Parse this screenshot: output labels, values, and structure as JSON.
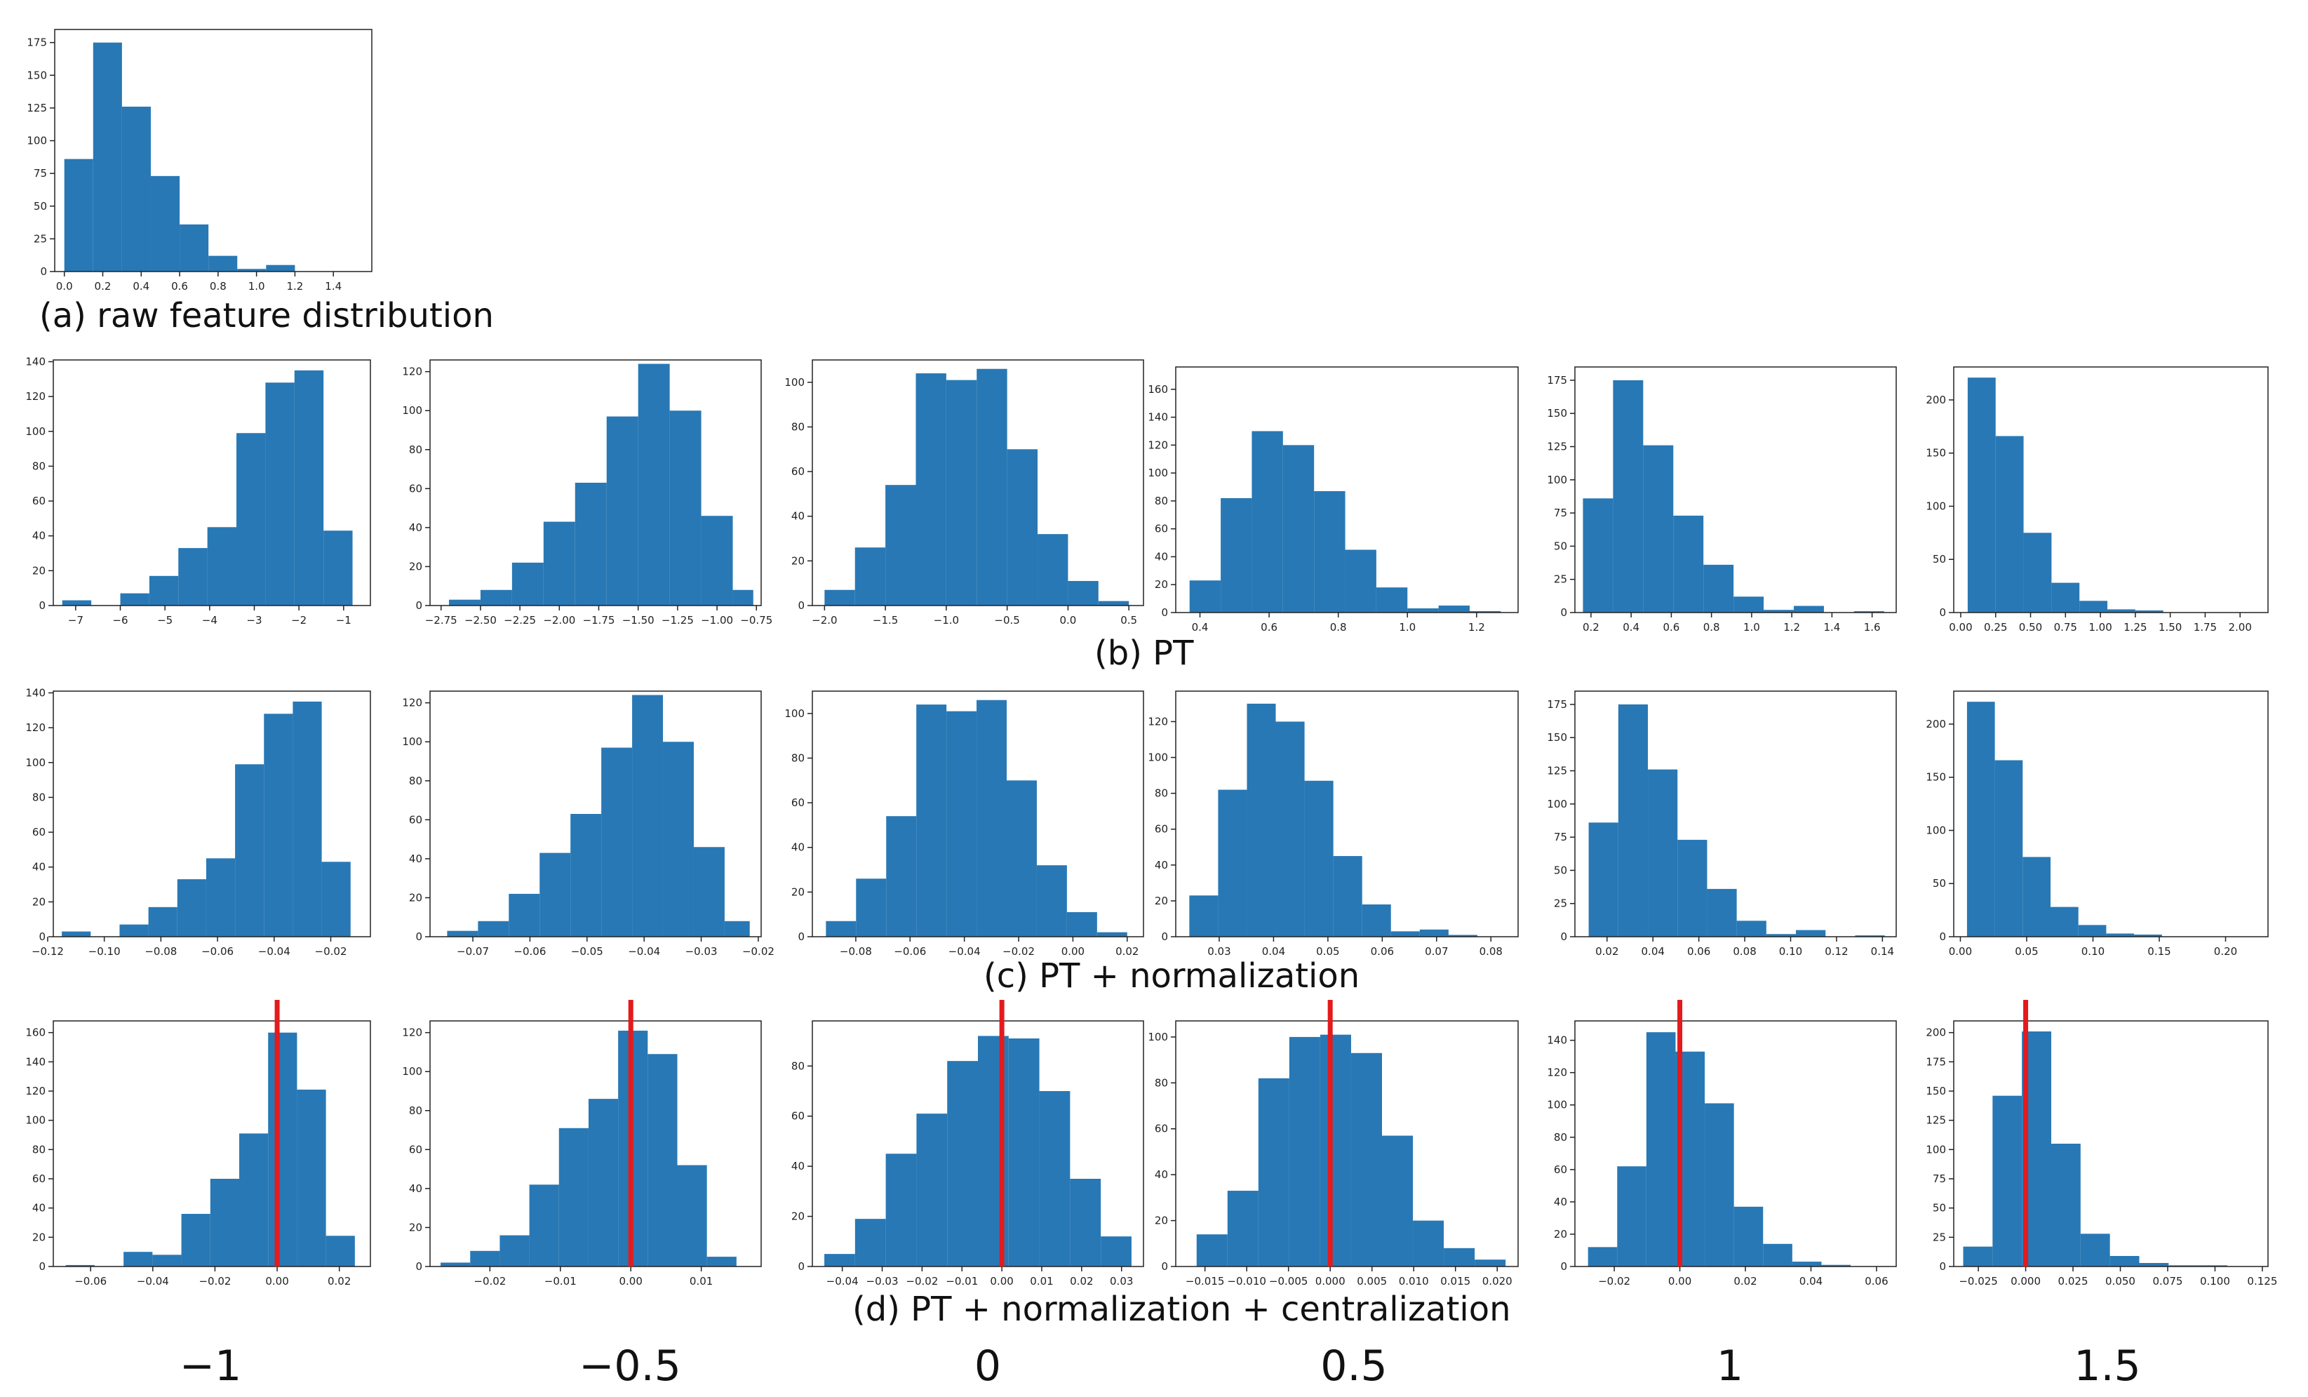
{
  "figure": {
    "captions": {
      "a": "(a) raw feature distribution",
      "b": "(b) PT",
      "c": "(c) PT + normalization",
      "d": "(d) PT + normalization + centralization"
    },
    "lambda_labels": [
      "−1",
      "−0.5",
      "0",
      "0.5",
      "1",
      "1.5"
    ],
    "colors": {
      "bar": "#2878b5",
      "marker": "#e41a1c",
      "axis": "#222222"
    }
  },
  "chart_data": [
    {
      "id": "a",
      "type": "bar",
      "title": "",
      "xlabel": "",
      "ylabel": "",
      "xlim": [
        -0.05,
        1.6
      ],
      "ylim": [
        0,
        185
      ],
      "xticks": [
        0.0,
        0.2,
        0.4,
        0.6,
        0.8,
        1.0,
        1.2,
        1.4
      ],
      "xtick_labels": [
        "0.0",
        "0.2",
        "0.4",
        "0.6",
        "0.8",
        "1.0",
        "1.2",
        "1.4"
      ],
      "yticks": [
        0,
        25,
        50,
        75,
        100,
        125,
        150,
        175
      ],
      "ytick_labels": [
        "0",
        "25",
        "50",
        "75",
        "100",
        "125",
        "150",
        "175"
      ],
      "bin_edges": [
        0.0,
        0.15,
        0.3,
        0.45,
        0.6,
        0.75,
        0.9,
        1.05,
        1.2,
        1.35,
        1.5
      ],
      "values": [
        86,
        175,
        126,
        73,
        36,
        12,
        2,
        5,
        0,
        0
      ]
    },
    {
      "id": "b1",
      "type": "bar",
      "xlim": [
        -7.5,
        -0.4
      ],
      "ylim": [
        0,
        141
      ],
      "xticks": [
        -7,
        -6,
        -5,
        -4,
        -3,
        -2,
        -1
      ],
      "xtick_labels": [
        "−7",
        "−6",
        "−5",
        "−4",
        "−3",
        "−2",
        "−1"
      ],
      "yticks": [
        0,
        20,
        40,
        60,
        80,
        100,
        120,
        140
      ],
      "ytick_labels": [
        "0",
        "20",
        "40",
        "60",
        "80",
        "100",
        "120",
        "140"
      ],
      "bin_edges": [
        -7.3,
        -6.65,
        -6.0,
        -5.35,
        -4.7,
        -4.05,
        -3.4,
        -2.75,
        -2.1,
        -1.45,
        -0.8
      ],
      "values": [
        3,
        0,
        7,
        17,
        33,
        45,
        99,
        128,
        135,
        43
      ]
    },
    {
      "id": "b2",
      "type": "bar",
      "xlim": [
        -2.82,
        -0.72
      ],
      "ylim": [
        0,
        126
      ],
      "xticks": [
        -2.75,
        -2.5,
        -2.25,
        -2.0,
        -1.75,
        -1.5,
        -1.25,
        -1.0,
        -0.75
      ],
      "xtick_labels": [
        "−2.75",
        "−2.50",
        "−2.25",
        "−2.00",
        "−1.75",
        "−1.50",
        "−1.25",
        "−1.00",
        "−0.75"
      ],
      "yticks": [
        0,
        20,
        40,
        60,
        80,
        100,
        120
      ],
      "ytick_labels": [
        "0",
        "20",
        "40",
        "60",
        "80",
        "100",
        "120"
      ],
      "bin_edges": [
        -2.7,
        -2.5,
        -2.3,
        -2.1,
        -1.9,
        -1.7,
        -1.5,
        -1.3,
        -1.1,
        -0.9,
        -0.77
      ],
      "values": [
        3,
        8,
        22,
        43,
        63,
        97,
        124,
        100,
        46,
        8
      ]
    },
    {
      "id": "b3",
      "type": "bar",
      "xlim": [
        -2.1,
        0.62
      ],
      "ylim": [
        0,
        110
      ],
      "xticks": [
        -2.0,
        -1.5,
        -1.0,
        -0.5,
        0.0,
        0.5
      ],
      "xtick_labels": [
        "−2.0",
        "−1.5",
        "−1.0",
        "−0.5",
        "0.0",
        "0.5"
      ],
      "yticks": [
        0,
        20,
        40,
        60,
        80,
        100
      ],
      "ytick_labels": [
        "0",
        "20",
        "40",
        "60",
        "80",
        "100"
      ],
      "bin_edges": [
        -2.0,
        -1.75,
        -1.5,
        -1.25,
        -1.0,
        -0.75,
        -0.5,
        -0.25,
        0.0,
        0.25,
        0.5
      ],
      "values": [
        7,
        26,
        54,
        104,
        101,
        106,
        70,
        32,
        11,
        2
      ]
    },
    {
      "id": "b4",
      "type": "bar",
      "xlim": [
        0.33,
        1.32
      ],
      "ylim": [
        0,
        176
      ],
      "xticks": [
        0.4,
        0.6,
        0.8,
        1.0,
        1.2
      ],
      "xtick_labels": [
        "0.4",
        "0.6",
        "0.8",
        "1.0",
        "1.2"
      ],
      "yticks": [
        0,
        20,
        40,
        60,
        80,
        100,
        120,
        140,
        160
      ],
      "ytick_labels": [
        "0",
        "20",
        "40",
        "60",
        "80",
        "100",
        "120",
        "140",
        "160"
      ],
      "bin_edges": [
        0.37,
        0.46,
        0.55,
        0.64,
        0.73,
        0.82,
        0.91,
        1.0,
        1.09,
        1.18,
        1.27
      ],
      "values": [
        23,
        82,
        130,
        120,
        87,
        45,
        18,
        3,
        5,
        1
      ]
    },
    {
      "id": "b5",
      "type": "bar",
      "xlim": [
        0.12,
        1.72
      ],
      "ylim": [
        0,
        185
      ],
      "xticks": [
        0.2,
        0.4,
        0.6,
        0.8,
        1.0,
        1.2,
        1.4,
        1.6
      ],
      "xtick_labels": [
        "0.2",
        "0.4",
        "0.6",
        "0.8",
        "1.0",
        "1.2",
        "1.4",
        "1.6"
      ],
      "yticks": [
        0,
        25,
        50,
        75,
        100,
        125,
        150,
        175
      ],
      "ytick_labels": [
        "0",
        "25",
        "50",
        "75",
        "100",
        "125",
        "150",
        "175"
      ],
      "bin_edges": [
        0.16,
        0.31,
        0.46,
        0.61,
        0.76,
        0.91,
        1.06,
        1.21,
        1.36,
        1.51,
        1.66
      ],
      "values": [
        86,
        175,
        126,
        73,
        36,
        12,
        2,
        5,
        0,
        1
      ]
    },
    {
      "id": "b6",
      "type": "bar",
      "xlim": [
        -0.05,
        2.2
      ],
      "ylim": [
        0,
        231
      ],
      "xticks": [
        0.0,
        0.25,
        0.5,
        0.75,
        1.0,
        1.25,
        1.5,
        1.75,
        2.0
      ],
      "xtick_labels": [
        "0.00",
        "0.25",
        "0.50",
        "0.75",
        "1.00",
        "1.25",
        "1.50",
        "1.75",
        "2.00"
      ],
      "yticks": [
        0,
        50,
        100,
        150,
        200
      ],
      "ytick_labels": [
        "0",
        "50",
        "100",
        "150",
        "200"
      ],
      "bin_edges": [
        0.05,
        0.25,
        0.45,
        0.65,
        0.85,
        1.05,
        1.25,
        1.45,
        1.65,
        1.85,
        2.05
      ],
      "values": [
        221,
        166,
        75,
        28,
        11,
        3,
        2,
        0,
        0,
        0
      ]
    },
    {
      "id": "c1",
      "type": "bar",
      "xlim": [
        -0.118,
        -0.006
      ],
      "ylim": [
        0,
        141
      ],
      "xticks": [
        -0.12,
        -0.1,
        -0.08,
        -0.06,
        -0.04,
        -0.02
      ],
      "xtick_labels": [
        "−0.12",
        "−0.10",
        "−0.08",
        "−0.06",
        "−0.04",
        "−0.02"
      ],
      "yticks": [
        0,
        20,
        40,
        60,
        80,
        100,
        120,
        140
      ],
      "ytick_labels": [
        "0",
        "20",
        "40",
        "60",
        "80",
        "100",
        "120",
        "140"
      ],
      "bin_edges": [
        -0.115,
        -0.1048,
        -0.0946,
        -0.0844,
        -0.0742,
        -0.064,
        -0.0538,
        -0.0436,
        -0.0334,
        -0.0232,
        -0.013
      ],
      "values": [
        3,
        0,
        7,
        17,
        33,
        45,
        99,
        128,
        135,
        43
      ]
    },
    {
      "id": "c2",
      "type": "bar",
      "xlim": [
        -0.0775,
        -0.0195
      ],
      "ylim": [
        0,
        126
      ],
      "xticks": [
        -0.07,
        -0.06,
        -0.05,
        -0.04,
        -0.03,
        -0.02
      ],
      "xtick_labels": [
        "−0.07",
        "−0.06",
        "−0.05",
        "−0.04",
        "−0.03",
        "−0.02"
      ],
      "yticks": [
        0,
        20,
        40,
        60,
        80,
        100,
        120
      ],
      "ytick_labels": [
        "0",
        "20",
        "40",
        "60",
        "80",
        "100",
        "120"
      ],
      "bin_edges": [
        -0.0745,
        -0.0691,
        -0.0637,
        -0.0583,
        -0.0529,
        -0.0475,
        -0.0421,
        -0.0367,
        -0.0313,
        -0.0259,
        -0.0215
      ],
      "values": [
        3,
        8,
        22,
        43,
        63,
        97,
        124,
        100,
        46,
        8
      ]
    },
    {
      "id": "c3",
      "type": "bar",
      "xlim": [
        -0.096,
        0.026
      ],
      "ylim": [
        0,
        110
      ],
      "xticks": [
        -0.08,
        -0.06,
        -0.04,
        -0.02,
        0.0,
        0.02
      ],
      "xtick_labels": [
        "−0.08",
        "−0.06",
        "−0.04",
        "−0.02",
        "0.00",
        "0.02"
      ],
      "yticks": [
        0,
        20,
        40,
        60,
        80,
        100
      ],
      "ytick_labels": [
        "0",
        "20",
        "40",
        "60",
        "80",
        "100"
      ],
      "bin_edges": [
        -0.091,
        -0.0799,
        -0.0688,
        -0.0577,
        -0.0466,
        -0.0355,
        -0.0244,
        -0.0133,
        -0.0022,
        0.0089,
        0.02
      ],
      "values": [
        7,
        26,
        54,
        104,
        101,
        106,
        70,
        32,
        11,
        2
      ]
    },
    {
      "id": "c4",
      "type": "bar",
      "xlim": [
        0.022,
        0.085
      ],
      "ylim": [
        0,
        137
      ],
      "xticks": [
        0.03,
        0.04,
        0.05,
        0.06,
        0.07,
        0.08
      ],
      "xtick_labels": [
        "0.03",
        "0.04",
        "0.05",
        "0.06",
        "0.07",
        "0.08"
      ],
      "yticks": [
        0,
        20,
        40,
        60,
        80,
        100,
        120
      ],
      "ytick_labels": [
        "0",
        "20",
        "40",
        "60",
        "80",
        "100",
        "120"
      ],
      "bin_edges": [
        0.0245,
        0.0298,
        0.0351,
        0.0404,
        0.0457,
        0.051,
        0.0563,
        0.0616,
        0.0669,
        0.0722,
        0.0775
      ],
      "values": [
        23,
        82,
        130,
        120,
        87,
        45,
        18,
        3,
        4,
        1
      ]
    },
    {
      "id": "c5",
      "type": "bar",
      "xlim": [
        0.006,
        0.146
      ],
      "ylim": [
        0,
        185
      ],
      "xticks": [
        0.02,
        0.04,
        0.06,
        0.08,
        0.1,
        0.12,
        0.14
      ],
      "xtick_labels": [
        "0.02",
        "0.04",
        "0.06",
        "0.08",
        "0.10",
        "0.12",
        "0.14"
      ],
      "yticks": [
        0,
        25,
        50,
        75,
        100,
        125,
        150,
        175
      ],
      "ytick_labels": [
        "0",
        "25",
        "50",
        "75",
        "100",
        "125",
        "150",
        "175"
      ],
      "bin_edges": [
        0.012,
        0.0249,
        0.0378,
        0.0507,
        0.0636,
        0.0765,
        0.0894,
        0.1023,
        0.1152,
        0.1281,
        0.141
      ],
      "values": [
        86,
        175,
        126,
        73,
        36,
        12,
        2,
        5,
        0,
        1
      ]
    },
    {
      "id": "c6",
      "type": "bar",
      "xlim": [
        -0.005,
        0.232
      ],
      "ylim": [
        0,
        231
      ],
      "xticks": [
        0.0,
        0.05,
        0.1,
        0.15,
        0.2
      ],
      "xtick_labels": [
        "0.00",
        "0.05",
        "0.10",
        "0.15",
        "0.20"
      ],
      "yticks": [
        0,
        50,
        100,
        150,
        200
      ],
      "ytick_labels": [
        "0",
        "50",
        "100",
        "150",
        "200"
      ],
      "bin_edges": [
        0.005,
        0.026,
        0.047,
        0.068,
        0.089,
        0.11,
        0.131,
        0.152,
        0.173,
        0.194,
        0.215
      ],
      "values": [
        221,
        166,
        75,
        28,
        11,
        3,
        2,
        0,
        0,
        0
      ]
    },
    {
      "id": "d1",
      "type": "bar",
      "marker_x": 0.0,
      "xlim": [
        -0.072,
        0.03
      ],
      "ylim": [
        0,
        168
      ],
      "xticks": [
        -0.06,
        -0.04,
        -0.02,
        0.0,
        0.02
      ],
      "xtick_labels": [
        "−0.06",
        "−0.04",
        "−0.02",
        "0.00",
        "0.02"
      ],
      "yticks": [
        0,
        20,
        40,
        60,
        80,
        100,
        120,
        140,
        160
      ],
      "ytick_labels": [
        "0",
        "20",
        "40",
        "60",
        "80",
        "100",
        "120",
        "140",
        "160"
      ],
      "bin_edges": [
        -0.068,
        -0.0587,
        -0.0494,
        -0.0401,
        -0.0308,
        -0.0215,
        -0.0122,
        -0.0029,
        0.0064,
        0.0157,
        0.025
      ],
      "values": [
        1,
        0,
        10,
        8,
        36,
        60,
        91,
        160,
        121,
        21
      ]
    },
    {
      "id": "d2",
      "type": "bar",
      "marker_x": 0.0,
      "xlim": [
        -0.0285,
        0.0185
      ],
      "ylim": [
        0,
        126
      ],
      "xticks": [
        -0.02,
        -0.01,
        0.0,
        0.01
      ],
      "xtick_labels": [
        "−0.02",
        "−0.01",
        "0.00",
        "0.01"
      ],
      "yticks": [
        0,
        20,
        40,
        60,
        80,
        100,
        120
      ],
      "ytick_labels": [
        "0",
        "20",
        "40",
        "60",
        "80",
        "100",
        "120"
      ],
      "bin_edges": [
        -0.027,
        -0.0228,
        -0.0186,
        -0.0144,
        -0.0102,
        -0.006,
        -0.0018,
        0.0024,
        0.0066,
        0.0108,
        0.015
      ],
      "values": [
        2,
        8,
        16,
        42,
        71,
        86,
        121,
        109,
        52,
        5
      ]
    },
    {
      "id": "d3",
      "type": "bar",
      "marker_x": 0.0,
      "xlim": [
        -0.0475,
        0.0355
      ],
      "ylim": [
        0,
        98
      ],
      "xticks": [
        -0.04,
        -0.03,
        -0.02,
        -0.01,
        0.0,
        0.01,
        0.02,
        0.03
      ],
      "xtick_labels": [
        "−0.04",
        "−0.03",
        "−0.02",
        "−0.01",
        "0.00",
        "0.01",
        "0.02",
        "0.03"
      ],
      "yticks": [
        0,
        20,
        40,
        60,
        80
      ],
      "ytick_labels": [
        "0",
        "20",
        "40",
        "60",
        "80"
      ],
      "bin_edges": [
        -0.0445,
        -0.0368,
        -0.0291,
        -0.0214,
        -0.0137,
        -0.006,
        0.0017,
        0.0094,
        0.0171,
        0.0248,
        0.0325
      ],
      "values": [
        5,
        19,
        45,
        61,
        82,
        92,
        91,
        70,
        35,
        12
      ]
    },
    {
      "id": "d4",
      "type": "bar",
      "marker_x": 0.0,
      "xlim": [
        -0.0185,
        0.0225
      ],
      "ylim": [
        0,
        107
      ],
      "xticks": [
        -0.015,
        -0.01,
        -0.005,
        0.0,
        0.005,
        0.01,
        0.015,
        0.02
      ],
      "xtick_labels": [
        "−0.015",
        "−0.010",
        "−0.005",
        "0.000",
        "0.005",
        "0.010",
        "0.015",
        "0.020"
      ],
      "yticks": [
        0,
        20,
        40,
        60,
        80,
        100
      ],
      "ytick_labels": [
        "0",
        "20",
        "40",
        "60",
        "80",
        "100"
      ],
      "bin_edges": [
        -0.016,
        -0.0123,
        -0.0086,
        -0.0049,
        -0.0012,
        0.0025,
        0.0062,
        0.0099,
        0.0136,
        0.0173,
        0.021
      ],
      "values": [
        14,
        33,
        82,
        100,
        101,
        93,
        57,
        20,
        8,
        3
      ]
    },
    {
      "id": "d5",
      "type": "bar",
      "marker_x": 0.0,
      "xlim": [
        -0.032,
        0.066
      ],
      "ylim": [
        0,
        152
      ],
      "xticks": [
        -0.02,
        0.0,
        0.02,
        0.04,
        0.06
      ],
      "xtick_labels": [
        "−0.02",
        "0.00",
        "0.02",
        "0.04",
        "0.06"
      ],
      "yticks": [
        0,
        20,
        40,
        60,
        80,
        100,
        120,
        140
      ],
      "ytick_labels": [
        "0",
        "20",
        "40",
        "60",
        "80",
        "100",
        "120",
        "140"
      ],
      "bin_edges": [
        -0.028,
        -0.0191,
        -0.0102,
        -0.0013,
        0.0076,
        0.0165,
        0.0254,
        0.0343,
        0.0432,
        0.0521,
        0.061
      ],
      "values": [
        12,
        62,
        145,
        133,
        101,
        37,
        14,
        3,
        1,
        0
      ]
    },
    {
      "id": "d6",
      "type": "bar",
      "marker_x": 0.0,
      "xlim": [
        -0.038,
        0.128
      ],
      "ylim": [
        0,
        210
      ],
      "xticks": [
        -0.025,
        0.0,
        0.025,
        0.05,
        0.075,
        0.1,
        0.125
      ],
      "xtick_labels": [
        "−0.025",
        "0.000",
        "0.025",
        "0.050",
        "0.075",
        "0.100",
        "0.125"
      ],
      "yticks": [
        0,
        25,
        50,
        75,
        100,
        125,
        150,
        175,
        200
      ],
      "ytick_labels": [
        "0",
        "25",
        "50",
        "75",
        "100",
        "125",
        "150",
        "175",
        "200"
      ],
      "bin_edges": [
        -0.033,
        -0.0175,
        -0.002,
        0.0135,
        0.029,
        0.0445,
        0.06,
        0.0755,
        0.091,
        0.1065,
        0.122
      ],
      "values": [
        17,
        146,
        201,
        105,
        28,
        9,
        3,
        1,
        1,
        0
      ]
    }
  ]
}
